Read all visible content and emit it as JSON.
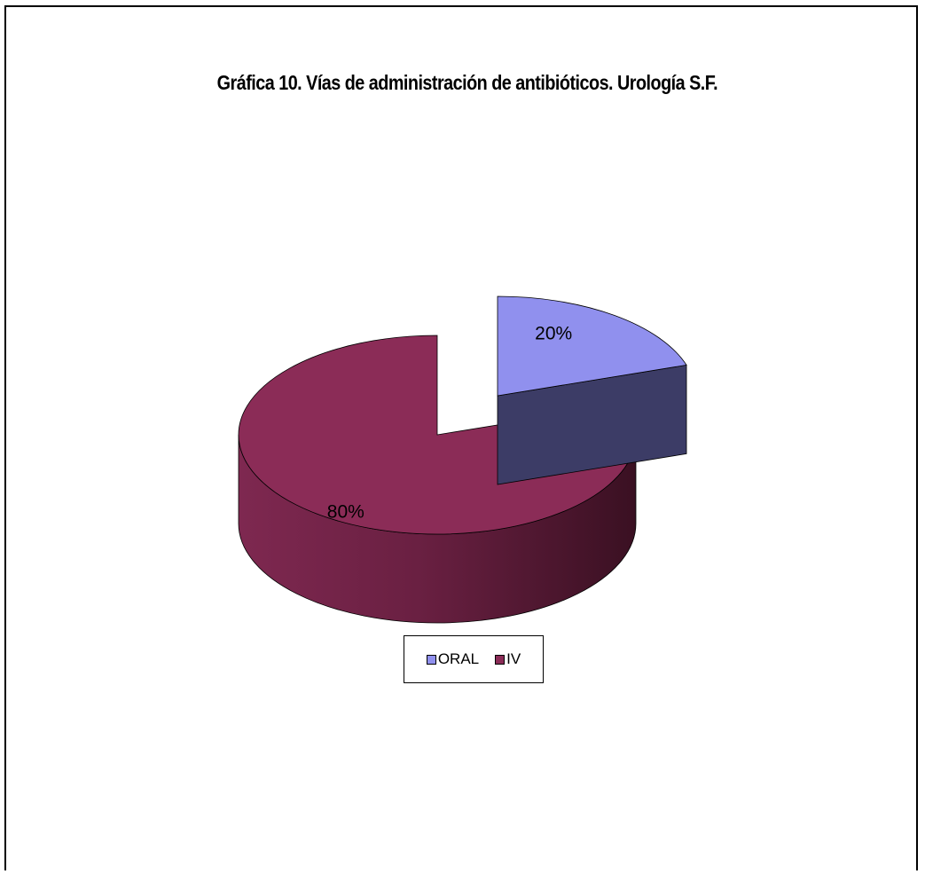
{
  "chart_data": {
    "type": "pie",
    "title": "Gráfica 10.   Vías de administración de antibióticos. Urología  S.F.",
    "categories": [
      "ORAL",
      "IV"
    ],
    "values": [
      20,
      80
    ],
    "labels": [
      "20%",
      "80%"
    ],
    "colors": [
      "#9090ee",
      "#8b2c57"
    ],
    "side_colors": [
      "#3c3c66",
      "#4e1a31"
    ],
    "exploded": "ORAL",
    "legend": "bottom",
    "style": "3d"
  }
}
